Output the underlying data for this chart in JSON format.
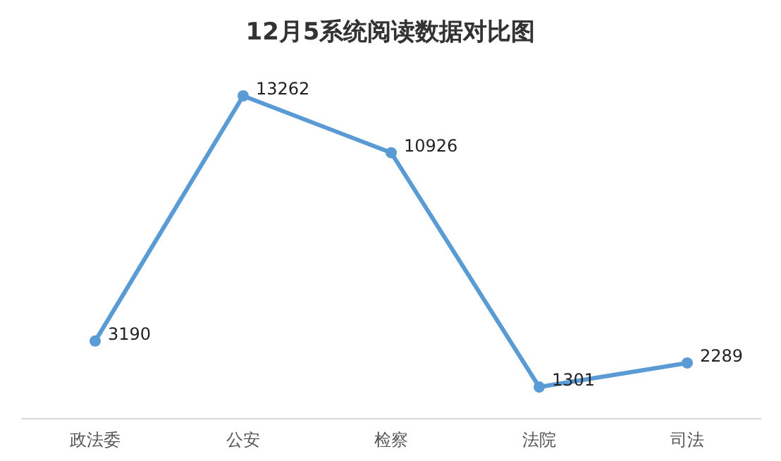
{
  "chart_data": {
    "type": "line",
    "title": "12月5系统阅读数据对比图",
    "categories": [
      "政法委",
      "公安",
      "检察",
      "法院",
      "司法"
    ],
    "series": [
      {
        "color": "#5b9bd5",
        "values": [
          3190,
          13262,
          10926,
          1301,
          2289
        ]
      }
    ],
    "data_labels": true,
    "marker": "circle",
    "line_style": "solid"
  }
}
